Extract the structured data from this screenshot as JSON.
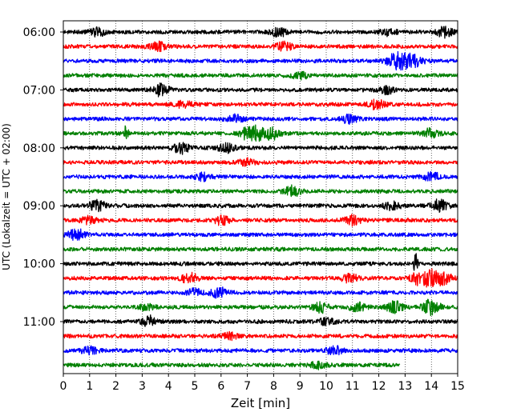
{
  "chart_data": {
    "type": "line",
    "title": "",
    "xlabel": "Zeit  [min]",
    "ylabel": "UTC (Lokalzeit = UTC + 02:00)",
    "xlim": [
      0,
      15
    ],
    "x_ticks": [
      0,
      1,
      2,
      3,
      4,
      5,
      6,
      7,
      8,
      9,
      10,
      11,
      12,
      13,
      14,
      15
    ],
    "x_tick_labels": [
      "0",
      "1",
      "2",
      "3",
      "4",
      "5",
      "6",
      "7",
      "8",
      "9",
      "10",
      "11",
      "12",
      "13",
      "14",
      "15"
    ],
    "y_tick_labels": [
      "06:00",
      "07:00",
      "08:00",
      "09:00",
      "10:00",
      "11:00"
    ],
    "grid": "vertical dotted",
    "trace_interval_minutes": 15,
    "colors": [
      "#000000",
      "#ff0000",
      "#0000ff",
      "#008000"
    ],
    "series": [
      {
        "start": "06:00",
        "color": "#000000",
        "end_min": 15,
        "events": [
          {
            "t": 1.3,
            "amp": 5
          },
          {
            "t": 8.2,
            "amp": 5
          },
          {
            "t": 12.4,
            "amp": 4
          },
          {
            "t": 14.5,
            "amp": 6
          }
        ]
      },
      {
        "start": "06:15",
        "color": "#ff0000",
        "end_min": 15,
        "events": [
          {
            "t": 3.6,
            "amp": 5
          },
          {
            "t": 8.4,
            "amp": 5
          }
        ]
      },
      {
        "start": "06:30",
        "color": "#0000ff",
        "end_min": 15,
        "events": [
          {
            "t": 12.6,
            "amp": 8
          },
          {
            "t": 13.0,
            "amp": 6
          },
          {
            "t": 13.4,
            "amp": 5
          }
        ]
      },
      {
        "start": "06:45",
        "color": "#008000",
        "end_min": 15,
        "events": [
          {
            "t": 9.0,
            "amp": 4
          }
        ]
      },
      {
        "start": "07:00",
        "color": "#000000",
        "end_min": 15,
        "events": [
          {
            "t": 3.7,
            "amp": 7
          },
          {
            "t": 12.3,
            "amp": 4
          }
        ]
      },
      {
        "start": "07:15",
        "color": "#ff0000",
        "end_min": 15,
        "events": [
          {
            "t": 4.6,
            "amp": 4
          },
          {
            "t": 11.9,
            "amp": 6
          }
        ]
      },
      {
        "start": "07:30",
        "color": "#0000ff",
        "end_min": 15,
        "events": [
          {
            "t": 6.5,
            "amp": 5
          },
          {
            "t": 10.9,
            "amp": 5
          }
        ]
      },
      {
        "start": "07:45",
        "color": "#008000",
        "end_min": 15,
        "events": [
          {
            "t": 2.4,
            "amp": 12
          },
          {
            "t": 7.0,
            "amp": 7
          },
          {
            "t": 7.5,
            "amp": 9
          },
          {
            "t": 8.0,
            "amp": 6
          },
          {
            "t": 14.0,
            "amp": 6
          }
        ]
      },
      {
        "start": "08:00",
        "color": "#000000",
        "end_min": 15,
        "events": [
          {
            "t": 4.5,
            "amp": 6
          },
          {
            "t": 6.2,
            "amp": 5
          }
        ]
      },
      {
        "start": "08:15",
        "color": "#ff0000",
        "end_min": 15,
        "events": [
          {
            "t": 7.0,
            "amp": 4
          }
        ]
      },
      {
        "start": "08:30",
        "color": "#0000ff",
        "end_min": 15,
        "events": [
          {
            "t": 5.3,
            "amp": 4
          },
          {
            "t": 14.0,
            "amp": 5
          }
        ]
      },
      {
        "start": "08:45",
        "color": "#008000",
        "end_min": 15,
        "events": [
          {
            "t": 8.7,
            "amp": 6
          }
        ]
      },
      {
        "start": "09:00",
        "color": "#000000",
        "end_min": 15,
        "events": [
          {
            "t": 1.3,
            "amp": 6
          },
          {
            "t": 12.5,
            "amp": 4
          },
          {
            "t": 14.3,
            "amp": 7
          }
        ]
      },
      {
        "start": "09:15",
        "color": "#ff0000",
        "end_min": 15,
        "events": [
          {
            "t": 1.0,
            "amp": 4
          },
          {
            "t": 6.0,
            "amp": 5
          },
          {
            "t": 11.0,
            "amp": 6
          }
        ]
      },
      {
        "start": "09:30",
        "color": "#0000ff",
        "end_min": 15,
        "events": [
          {
            "t": 0.5,
            "amp": 7
          }
        ]
      },
      {
        "start": "09:45",
        "color": "#008000",
        "end_min": 15,
        "events": []
      },
      {
        "start": "10:00",
        "color": "#000000",
        "end_min": 15,
        "events": [
          {
            "t": 13.4,
            "amp": 13
          }
        ]
      },
      {
        "start": "10:15",
        "color": "#ff0000",
        "end_min": 15,
        "events": [
          {
            "t": 4.8,
            "amp": 6
          },
          {
            "t": 10.9,
            "amp": 5
          },
          {
            "t": 13.5,
            "amp": 7
          },
          {
            "t": 14.0,
            "amp": 9
          },
          {
            "t": 14.5,
            "amp": 6
          }
        ]
      },
      {
        "start": "10:30",
        "color": "#0000ff",
        "end_min": 15,
        "events": [
          {
            "t": 5.0,
            "amp": 4
          },
          {
            "t": 5.9,
            "amp": 6
          }
        ]
      },
      {
        "start": "10:45",
        "color": "#008000",
        "end_min": 15,
        "events": [
          {
            "t": 3.2,
            "amp": 4
          },
          {
            "t": 9.8,
            "amp": 6
          },
          {
            "t": 11.2,
            "amp": 5
          },
          {
            "t": 12.6,
            "amp": 7
          },
          {
            "t": 14.0,
            "amp": 9
          }
        ]
      },
      {
        "start": "11:00",
        "color": "#000000",
        "end_min": 15,
        "events": [
          {
            "t": 3.3,
            "amp": 6
          },
          {
            "t": 10.0,
            "amp": 4
          }
        ]
      },
      {
        "start": "11:15",
        "color": "#ff0000",
        "end_min": 15,
        "events": [
          {
            "t": 6.3,
            "amp": 4
          }
        ]
      },
      {
        "start": "11:30",
        "color": "#0000ff",
        "end_min": 15,
        "events": [
          {
            "t": 1.0,
            "amp": 4
          },
          {
            "t": 10.3,
            "amp": 5
          }
        ]
      },
      {
        "start": "11:45",
        "color": "#008000",
        "end_min": 12.8,
        "events": [
          {
            "t": 9.7,
            "amp": 4
          }
        ]
      }
    ]
  }
}
